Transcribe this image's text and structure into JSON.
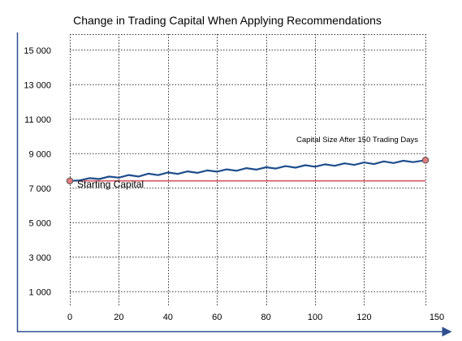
{
  "chart_data": {
    "type": "line",
    "title": "Change in Trading Capital When Applying Recommendations",
    "xlabel": "",
    "ylabel": "",
    "xlim": [
      0,
      150
    ],
    "ylim": [
      0,
      16000
    ],
    "x_ticks": [
      0,
      20,
      40,
      60,
      80,
      100,
      120,
      150
    ],
    "y_ticks": [
      1000,
      3000,
      5000,
      7000,
      9000,
      11000,
      13000,
      15000
    ],
    "x_tick_labels": [
      "0",
      "20",
      "40",
      "60",
      "80",
      "100",
      "120",
      "150"
    ],
    "y_tick_labels": [
      "1 000",
      "3 000",
      "5 000",
      "7 000",
      "9 000",
      "11 000",
      "13 000",
      "15 000"
    ],
    "grid": true,
    "series": [
      {
        "color": "#1f4e8c",
        "x": [
          0,
          4,
          8,
          12,
          16,
          20,
          24,
          28,
          32,
          36,
          40,
          44,
          48,
          52,
          56,
          60,
          64,
          68,
          72,
          76,
          80,
          84,
          88,
          92,
          96,
          100,
          104,
          108,
          112,
          116,
          120,
          124,
          128,
          132,
          136,
          140,
          145
        ],
        "values": [
          7400,
          7480,
          7500,
          7560,
          7590,
          7640,
          7680,
          7710,
          7760,
          7790,
          7830,
          7860,
          7890,
          7920,
          7950,
          7990,
          8010,
          8040,
          8080,
          8110,
          8130,
          8170,
          8200,
          8220,
          8250,
          8280,
          8300,
          8330,
          8360,
          8380,
          8410,
          8430,
          8470,
          8490,
          8510,
          8540,
          8600
        ]
      }
    ],
    "reference_line": {
      "value": 7400,
      "color": "#d9606a"
    },
    "annotations": {
      "start_label": "Starting Capital",
      "end_label": "Capital Size After 150 Trading Days"
    },
    "marker_color": "#e07a7a"
  }
}
